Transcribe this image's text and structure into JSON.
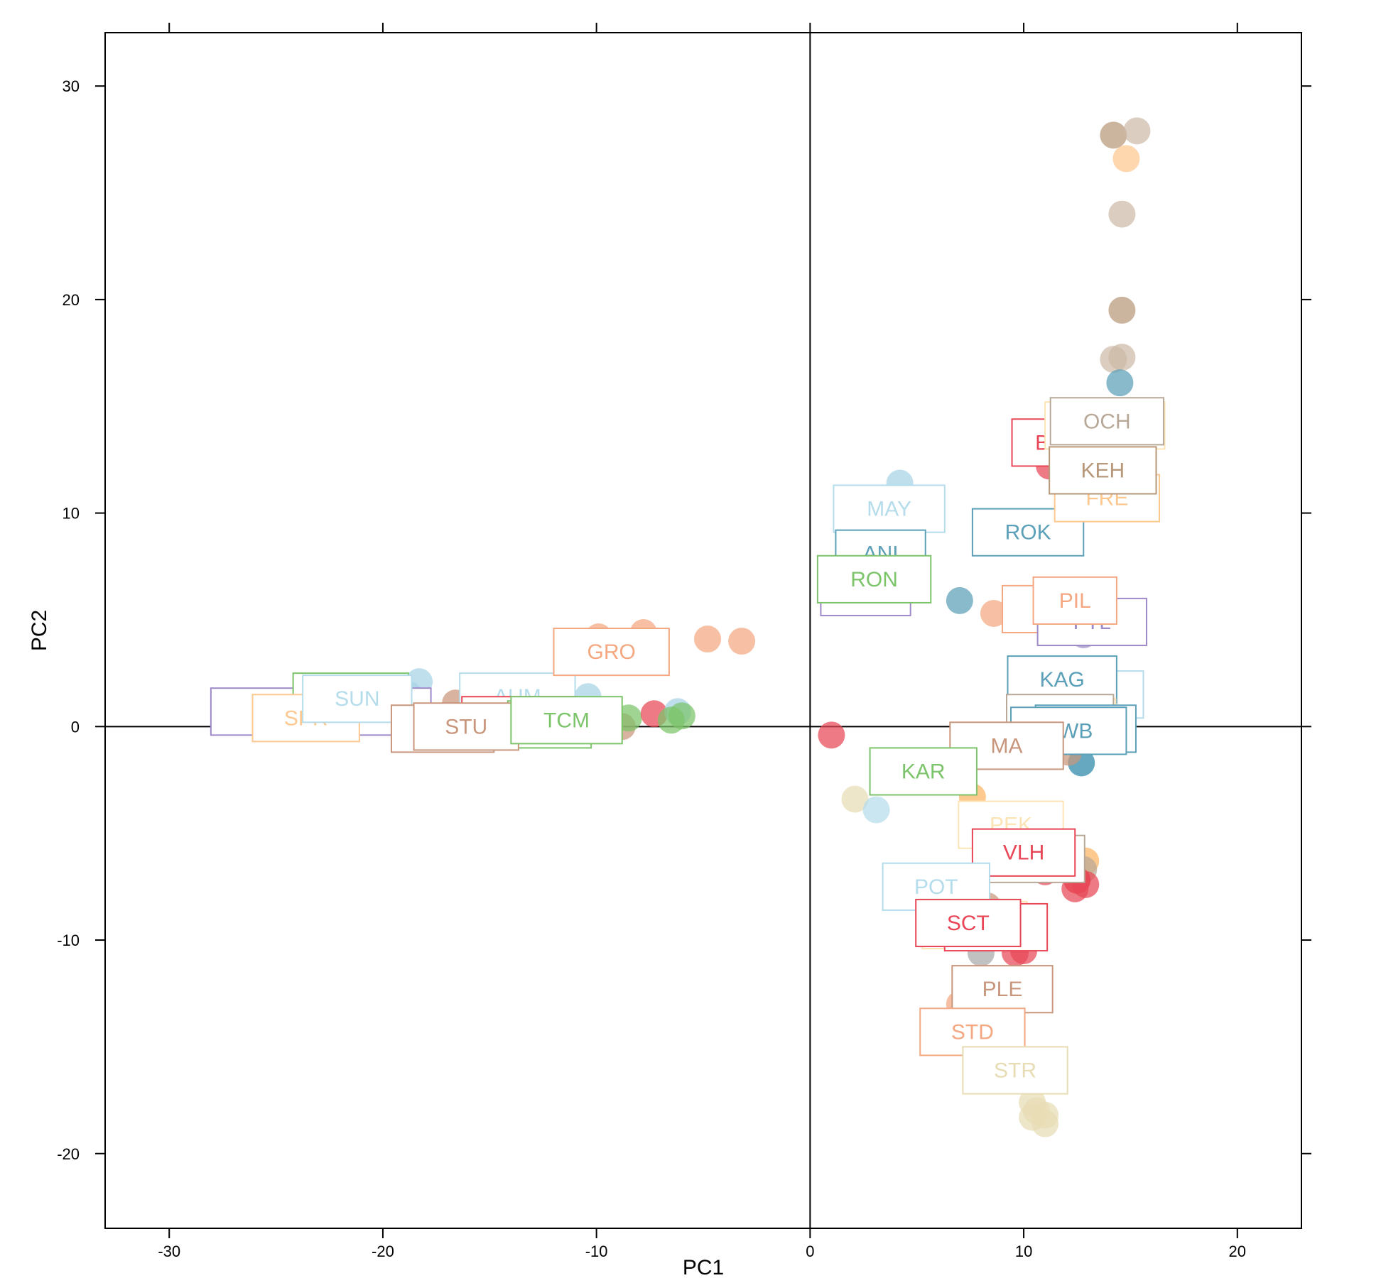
{
  "chart_data": {
    "type": "scatter",
    "title": "",
    "xlabel": "PC1",
    "ylabel": "PC2",
    "xlim": [
      -33,
      23
    ],
    "ylim": [
      -23.5,
      32.5
    ],
    "xticks": [
      -30,
      -20,
      -10,
      0,
      10,
      20
    ],
    "yticks": [
      -20,
      -10,
      0,
      10,
      20,
      30
    ],
    "reference_lines": {
      "x": 0,
      "y": 0
    },
    "grid": false,
    "legend": "none",
    "points": [
      {
        "x": -25.0,
        "y": 0.7,
        "color": "#9e8ac8"
      },
      {
        "x": -18.3,
        "y": 2.1,
        "color": "#a6d2e6"
      },
      {
        "x": -18.8,
        "y": 1.5,
        "color": "#a6d2e6"
      },
      {
        "x": -16.6,
        "y": 1.1,
        "color": "#c8967c"
      },
      {
        "x": -15.8,
        "y": 0.8,
        "color": "#c8967c"
      },
      {
        "x": -10.4,
        "y": 1.4,
        "color": "#a6d2e6"
      },
      {
        "x": -9.9,
        "y": 4.2,
        "color": "#f4a882"
      },
      {
        "x": -7.8,
        "y": 4.4,
        "color": "#f4a882"
      },
      {
        "x": -4.8,
        "y": 4.1,
        "color": "#f4a882"
      },
      {
        "x": -3.2,
        "y": 4.0,
        "color": "#f4a882"
      },
      {
        "x": -8.8,
        "y": 0.0,
        "color": "#c8967c"
      },
      {
        "x": -8.5,
        "y": 0.4,
        "color": "#7cc46a"
      },
      {
        "x": -7.3,
        "y": 0.6,
        "color": "#e84656"
      },
      {
        "x": -6.2,
        "y": 0.7,
        "color": "#a6d2e6"
      },
      {
        "x": -6.5,
        "y": 0.3,
        "color": "#7cc46a"
      },
      {
        "x": -6.0,
        "y": 0.5,
        "color": "#7cc46a"
      },
      {
        "x": 1.0,
        "y": -0.4,
        "color": "#e84656"
      },
      {
        "x": 4.2,
        "y": 11.4,
        "color": "#a6d2e6"
      },
      {
        "x": 7.0,
        "y": 5.9,
        "color": "#5b9fb8"
      },
      {
        "x": 2.1,
        "y": -3.4,
        "color": "#e8dcb4"
      },
      {
        "x": 3.1,
        "y": -3.9,
        "color": "#b4dceb"
      },
      {
        "x": 8.6,
        "y": 5.3,
        "color": "#f4a882"
      },
      {
        "x": 12.6,
        "y": 6.4,
        "color": "#f4a882"
      },
      {
        "x": 12.8,
        "y": 4.3,
        "color": "#9e8ac8"
      },
      {
        "x": 11.2,
        "y": 12.2,
        "color": "#e84656"
      },
      {
        "x": 14.2,
        "y": 27.7,
        "color": "#b8987a"
      },
      {
        "x": 15.3,
        "y": 27.9,
        "color": "#cdbaa6"
      },
      {
        "x": 14.8,
        "y": 26.6,
        "color": "#fdc890"
      },
      {
        "x": 14.6,
        "y": 24.0,
        "color": "#cdbaa6"
      },
      {
        "x": 14.6,
        "y": 19.5,
        "color": "#b8987a"
      },
      {
        "x": 14.2,
        "y": 17.2,
        "color": "#cdbaa6"
      },
      {
        "x": 14.6,
        "y": 17.3,
        "color": "#cdbaa6"
      },
      {
        "x": 14.5,
        "y": 16.1,
        "color": "#5b9fb8"
      },
      {
        "x": 12.7,
        "y": -1.7,
        "color": "#2a86a8"
      },
      {
        "x": 12.1,
        "y": -1.2,
        "color": "#c8967c"
      },
      {
        "x": 7.6,
        "y": -3.3,
        "color": "#fdb462"
      },
      {
        "x": 12.9,
        "y": -6.3,
        "color": "#fdb462"
      },
      {
        "x": 12.8,
        "y": -6.7,
        "color": "#b8a898"
      },
      {
        "x": 10.3,
        "y": -6.6,
        "color": "#c8967c"
      },
      {
        "x": 11.0,
        "y": -6.8,
        "color": "#e84656"
      },
      {
        "x": 12.5,
        "y": -7.2,
        "color": "#e8242e"
      },
      {
        "x": 12.9,
        "y": -7.4,
        "color": "#e84656"
      },
      {
        "x": 12.4,
        "y": -7.6,
        "color": "#e84656"
      },
      {
        "x": 8.3,
        "y": -8.4,
        "color": "#c8967c"
      },
      {
        "x": 8.0,
        "y": -10.6,
        "color": "#a9a9a9"
      },
      {
        "x": 9.6,
        "y": -10.6,
        "color": "#e84656"
      },
      {
        "x": 10.0,
        "y": -10.5,
        "color": "#e84656"
      },
      {
        "x": 7.0,
        "y": -13.0,
        "color": "#f4a882"
      },
      {
        "x": 7.6,
        "y": -14.3,
        "color": "#f4a882"
      },
      {
        "x": 7.8,
        "y": -15.2,
        "color": "#f4a882"
      },
      {
        "x": 10.4,
        "y": -17.6,
        "color": "#e8dcb4"
      },
      {
        "x": 10.6,
        "y": -18.0,
        "color": "#e8dcb4"
      },
      {
        "x": 10.4,
        "y": -18.3,
        "color": "#e8dcb4"
      },
      {
        "x": 11.0,
        "y": -18.2,
        "color": "#e8dcb4"
      },
      {
        "x": 11.0,
        "y": -18.6,
        "color": "#e8dcb4"
      }
    ],
    "labels": [
      {
        "text": "",
        "x": -22.9,
        "y": 0.7,
        "w": 10.3,
        "h": 2.2,
        "color": "#9e8ac8"
      },
      {
        "text": "",
        "x": -21.5,
        "y": 1.4,
        "w": 5.4,
        "h": 2.2,
        "color": "#7cc46a"
      },
      {
        "text": "SPR",
        "x": -23.6,
        "y": 0.4,
        "w": 5.0,
        "h": 2.2,
        "color": "#fdc890"
      },
      {
        "text": "SUN",
        "x": -21.2,
        "y": 1.3,
        "w": 5.1,
        "h": 2.2,
        "color": "#b4dceb"
      },
      {
        "text": "AUM",
        "x": -13.7,
        "y": 1.4,
        "w": 5.4,
        "h": 2.2,
        "color": "#b4dceb"
      },
      {
        "text": "",
        "x": -13.8,
        "y": 0.2,
        "w": 4.1,
        "h": 2.2,
        "color": "#9e8ac8"
      },
      {
        "text": "",
        "x": -13.6,
        "y": 0.3,
        "w": 5.4,
        "h": 2.2,
        "color": "#e84656"
      },
      {
        "text": "",
        "x": -12.2,
        "y": 0.1,
        "w": 3.9,
        "h": 2.2,
        "color": "#7cc46a"
      },
      {
        "text": "",
        "x": -17.2,
        "y": -0.1,
        "w": 4.8,
        "h": 2.2,
        "color": "#c8967c"
      },
      {
        "text": "STU",
        "x": -16.1,
        "y": 0.0,
        "w": 4.9,
        "h": 2.2,
        "color": "#c8967c"
      },
      {
        "text": "TCM",
        "x": -11.4,
        "y": 0.3,
        "w": 5.2,
        "h": 2.2,
        "color": "#7cc46a"
      },
      {
        "text": "GRO",
        "x": -9.3,
        "y": 3.5,
        "w": 5.4,
        "h": 2.2,
        "color": "#f4a882"
      },
      {
        "text": "MAY",
        "x": 3.7,
        "y": 10.2,
        "w": 5.2,
        "h": 2.2,
        "color": "#b4dceb"
      },
      {
        "text": "ANI",
        "x": 3.3,
        "y": 8.1,
        "w": 4.2,
        "h": 2.2,
        "color": "#5b9fb8"
      },
      {
        "text": "",
        "x": 2.6,
        "y": 6.1,
        "w": 4.2,
        "h": 1.8,
        "color": "#9e8ac8"
      },
      {
        "text": "RON",
        "x": 3.0,
        "y": 6.9,
        "w": 5.3,
        "h": 2.2,
        "color": "#7cc46a"
      },
      {
        "text": "ROK",
        "x": 10.2,
        "y": 9.1,
        "w": 5.2,
        "h": 2.2,
        "color": "#5b9fb8"
      },
      {
        "text": "BA",
        "x": 11.2,
        "y": 13.3,
        "w": 3.5,
        "h": 2.2,
        "color": "#e84656"
      },
      {
        "text": "",
        "x": 13.8,
        "y": 14.1,
        "w": 5.6,
        "h": 2.2,
        "color": "#fde4b4"
      },
      {
        "text": "OCH",
        "x": 13.9,
        "y": 14.3,
        "w": 5.3,
        "h": 2.2,
        "color": "#b8a898"
      },
      {
        "text": "FRE",
        "x": 13.9,
        "y": 10.7,
        "w": 4.9,
        "h": 2.2,
        "color": "#fdc890"
      },
      {
        "text": "KEH",
        "x": 13.7,
        "y": 12.0,
        "w": 5.0,
        "h": 2.2,
        "color": "#b8987a"
      },
      {
        "text": "L",
        "x": 11.1,
        "y": 5.5,
        "w": 4.2,
        "h": 2.2,
        "color": "#f4a882"
      },
      {
        "text": "FTL",
        "x": 13.2,
        "y": 4.9,
        "w": 5.1,
        "h": 2.2,
        "color": "#9e8ac8"
      },
      {
        "text": "PIL",
        "x": 12.4,
        "y": 5.9,
        "w": 3.9,
        "h": 2.2,
        "color": "#f4a882"
      },
      {
        "text": "",
        "x": 13.1,
        "y": 1.5,
        "w": 5.0,
        "h": 2.2,
        "color": "#b4dceb"
      },
      {
        "text": "KAG",
        "x": 11.8,
        "y": 2.2,
        "w": 5.1,
        "h": 2.2,
        "color": "#5b9fb8"
      },
      {
        "text": "",
        "x": 11.8,
        "y": 0.2,
        "w": 5.0,
        "h": 2.2,
        "color": "#fde4b4"
      },
      {
        "text": "",
        "x": 11.7,
        "y": 0.4,
        "w": 5.0,
        "h": 2.2,
        "color": "#b8a898"
      },
      {
        "text": "",
        "x": 12.9,
        "y": -0.1,
        "w": 4.7,
        "h": 2.2,
        "color": "#5b9fb8"
      },
      {
        "text": "SWB",
        "x": 12.1,
        "y": -0.2,
        "w": 5.4,
        "h": 2.2,
        "color": "#5b9fb8"
      },
      {
        "text": "MA",
        "x": 9.2,
        "y": -0.9,
        "w": 5.3,
        "h": 2.2,
        "color": "#c8967c"
      },
      {
        "text": "KAR",
        "x": 5.3,
        "y": -2.1,
        "w": 5.0,
        "h": 2.2,
        "color": "#7cc46a"
      },
      {
        "text": "PEK",
        "x": 9.4,
        "y": -4.6,
        "w": 4.9,
        "h": 2.2,
        "color": "#fde4b4"
      },
      {
        "text": "",
        "x": 10.3,
        "y": -6.2,
        "w": 5.1,
        "h": 2.2,
        "color": "#b8a898"
      },
      {
        "text": "VLH",
        "x": 10.0,
        "y": -5.9,
        "w": 4.8,
        "h": 2.2,
        "color": "#e84656"
      },
      {
        "text": "POT",
        "x": 5.9,
        "y": -7.5,
        "w": 5.0,
        "h": 2.2,
        "color": "#b4dceb"
      },
      {
        "text": "",
        "x": 7.7,
        "y": -9.3,
        "w": 4.9,
        "h": 2.2,
        "color": "#fde4b4"
      },
      {
        "text": "",
        "x": 8.7,
        "y": -9.4,
        "w": 4.8,
        "h": 2.2,
        "color": "#e84656"
      },
      {
        "text": "SCT",
        "x": 7.4,
        "y": -9.2,
        "w": 4.9,
        "h": 2.2,
        "color": "#e84656"
      },
      {
        "text": "PLE",
        "x": 9.0,
        "y": -12.3,
        "w": 4.7,
        "h": 2.2,
        "color": "#c8967c"
      },
      {
        "text": "STD",
        "x": 7.6,
        "y": -14.3,
        "w": 4.9,
        "h": 2.2,
        "color": "#f4a882"
      },
      {
        "text": "STR",
        "x": 9.6,
        "y": -16.1,
        "w": 4.9,
        "h": 2.2,
        "color": "#e8dcb4"
      }
    ]
  }
}
